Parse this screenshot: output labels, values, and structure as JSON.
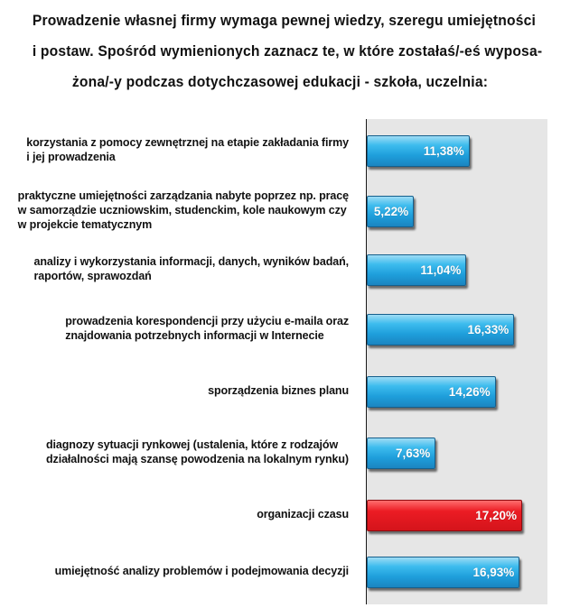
{
  "chart_data": {
    "type": "bar",
    "orientation": "horizontal",
    "title_lines": [
      "Prowadzenie własnej firmy wymaga pewnej wiedzy, szeregu umiejętności",
      "i postaw. Spośród wymienionych zaznacz te, w które zostałaś/-eś wyposa-",
      "żona/-y podczas dotychczasowej edukacji - szkoła, uczelnia:"
    ],
    "categories": [
      [
        "korzystania z pomocy zewnętrznej na etapie zakładania firmy",
        "i jej prowadzenia"
      ],
      [
        "praktyczne umiejętności zarządzania nabyte poprzez np. pracę",
        "w samorządzie uczniowskim, studenckim, kole naukowym czy",
        "w projekcie tematycznym"
      ],
      [
        "analizy i wykorzystania informacji, danych, wyników badań,",
        "raportów, sprawozdań"
      ],
      [
        "prowadzenia korespondencji przy użyciu e-maila oraz",
        "znajdowania potrzebnych informacji w Internecie"
      ],
      [
        "sporządzenia biznes planu"
      ],
      [
        "diagnozy sytuacji rynkowej (ustalenia, które z rodzajów",
        "działalności mają szansę powodzenia na lokalnym rynku)"
      ],
      [
        "organizacji czasu"
      ],
      [
        "umiejętność analizy problemów i podejmowania decyzji"
      ]
    ],
    "values": [
      11.38,
      5.22,
      11.04,
      16.33,
      14.26,
      7.63,
      17.2,
      16.93
    ],
    "value_labels": [
      "11,38%",
      "5,22%",
      "11,04%",
      "16,33%",
      "14,26%",
      "7,63%",
      "17,20%",
      "16,93%"
    ],
    "highlight_index": 6,
    "xlim": [
      0,
      20
    ],
    "colors": {
      "bar": "#1e9edb",
      "highlight": "#ec1c24",
      "plot_background": "#e6e6e6"
    }
  }
}
